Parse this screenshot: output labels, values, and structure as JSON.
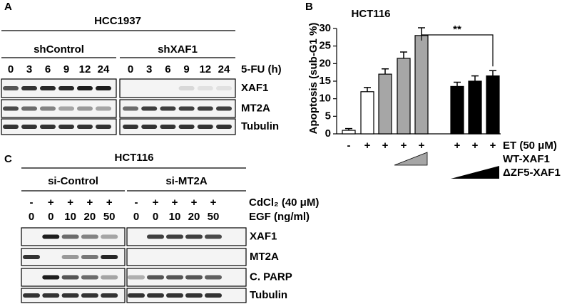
{
  "panel_a": {
    "label": "A",
    "cell_line": "HCC1937",
    "groups": [
      {
        "name": "shControl",
        "times": [
          0,
          3,
          6,
          9,
          12,
          24
        ]
      },
      {
        "name": "shXAF1",
        "times": [
          0,
          3,
          6,
          9,
          12,
          24
        ]
      }
    ],
    "treatment": "5-FU (h)",
    "blots": [
      "XAF1",
      "MT2A",
      "Tubulin"
    ]
  },
  "chart_data": {
    "type": "bar",
    "panel_label": "B",
    "title": "HCT116",
    "y_label": "Apoptosis (sub-G1 %)",
    "categories": [
      "-",
      "+",
      "+",
      "+",
      "+",
      "+",
      "+",
      "+"
    ],
    "category_label": "ET (50 μM)",
    "values": [
      1,
      12,
      17,
      21.5,
      28,
      13.5,
      15,
      16.5
    ],
    "errors": [
      0.5,
      1.2,
      1.5,
      1.8,
      2.2,
      1.2,
      1.5,
      1.5
    ],
    "colors": [
      "#ffffff",
      "#ffffff",
      "#a6a6a6",
      "#a6a6a6",
      "#a6a6a6",
      "#000000",
      "#000000",
      "#000000"
    ],
    "ylim": [
      0,
      30
    ],
    "yticks": [
      0,
      5,
      10,
      15,
      20,
      25,
      30
    ],
    "ramps": [
      {
        "name": "WT-XAF1",
        "color": "#a6a6a6"
      },
      {
        "name": "ΔZF5-XAF1",
        "color": "#000000"
      }
    ],
    "significance": "**"
  },
  "panel_c": {
    "label": "C",
    "cell_line": "HCT116",
    "groups": [
      {
        "name": "si-Control",
        "cdcl2": [
          "-",
          "+",
          "+",
          "+",
          "+"
        ],
        "egf": [
          0,
          0,
          10,
          20,
          50
        ]
      },
      {
        "name": "si-MT2A",
        "cdcl2": [
          "-",
          "+",
          "+",
          "+",
          "+"
        ],
        "egf": [
          0,
          0,
          10,
          20,
          50
        ]
      }
    ],
    "cdcl2_label": "CdCl₂ (40 μM)",
    "egf_label": "EGF (ng/ml)",
    "blots": [
      "XAF1",
      "MT2A",
      "C. PARP",
      "Tubulin"
    ]
  }
}
